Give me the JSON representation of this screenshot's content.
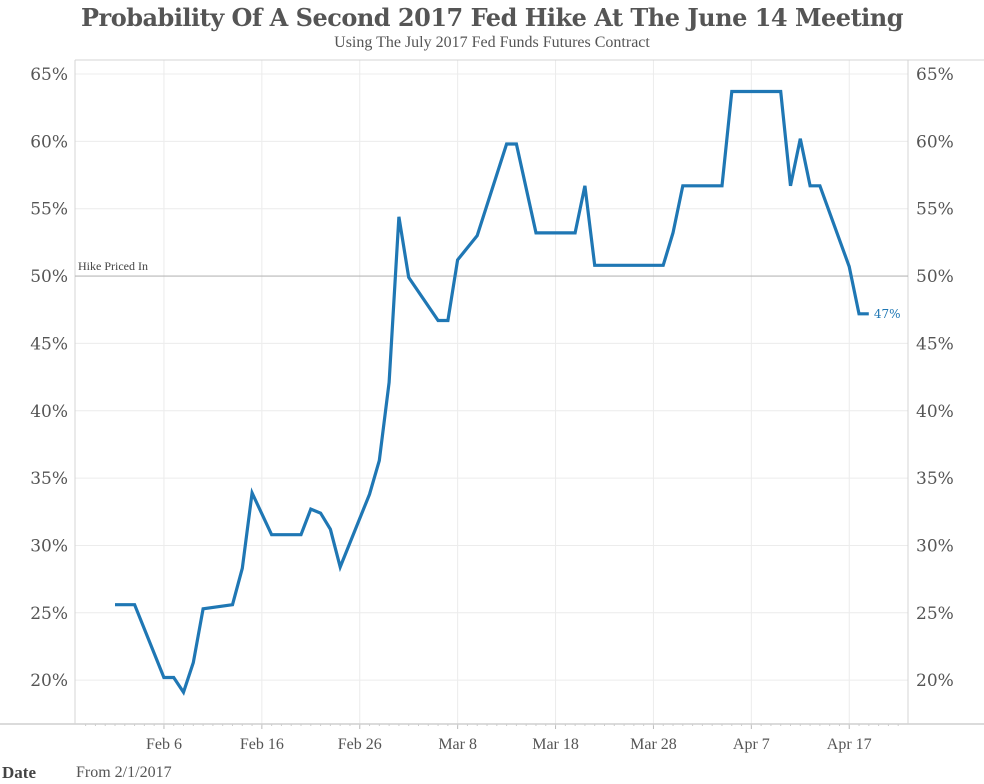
{
  "chart_data": {
    "type": "line",
    "title": "Probability Of A Second 2017 Fed Hike At The June 14 Meeting",
    "subtitle": "Using The July 2017 Fed Funds Futures Contract",
    "xlabel": "",
    "ylabel": "",
    "x_start_date": "2017-02-01",
    "ylim": [
      17.5,
      66
    ],
    "y_ticks": [
      20,
      25,
      30,
      35,
      40,
      45,
      50,
      55,
      60,
      65
    ],
    "y_tick_labels": [
      "20%",
      "25%",
      "30%",
      "35%",
      "40%",
      "45%",
      "50%",
      "55%",
      "60%",
      "65%"
    ],
    "x_ticks_days": [
      5,
      15,
      25,
      35,
      45,
      55,
      65,
      75
    ],
    "x_tick_labels": [
      "Feb 6",
      "Feb 16",
      "Feb 26",
      "Mar 8",
      "Mar 18",
      "Mar 28",
      "Apr 7",
      "Apr 17"
    ],
    "xlim_days": [
      -4,
      81
    ],
    "grid": true,
    "reference_line": {
      "value": 50,
      "label": "Hike Priced In"
    },
    "end_label": "47%",
    "series": [
      {
        "name": "Probability",
        "color": "#1f77b4",
        "x_days": [
          0,
          2,
          5,
          6,
          7,
          8,
          9,
          12,
          13,
          14,
          16,
          19,
          20,
          21,
          22,
          23,
          26,
          27,
          28,
          29,
          30,
          33,
          34,
          35,
          36,
          37,
          40,
          41,
          43,
          47,
          48,
          49,
          56,
          57,
          58,
          62,
          63,
          68,
          69,
          70,
          71,
          72,
          75,
          76,
          77
        ],
        "values": [
          25.6,
          25.6,
          20.2,
          20.2,
          19.1,
          21.3,
          25.3,
          25.6,
          28.3,
          33.9,
          30.8,
          30.8,
          32.7,
          32.4,
          31.2,
          28.4,
          33.8,
          36.3,
          42.1,
          54.4,
          49.9,
          46.7,
          46.7,
          51.2,
          52.1,
          53.0,
          59.8,
          59.8,
          53.2,
          53.2,
          56.7,
          50.8,
          50.8,
          53.2,
          56.7,
          56.7,
          63.7,
          63.7,
          56.7,
          60.2,
          56.7,
          56.7,
          50.7,
          47.2,
          47.2
        ]
      }
    ]
  },
  "filter": {
    "label": "Date",
    "value": "From 2/1/2017"
  }
}
